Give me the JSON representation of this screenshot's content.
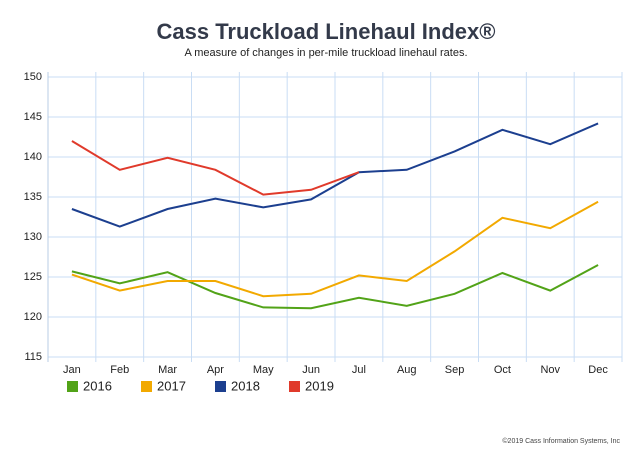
{
  "chart_data": {
    "type": "line",
    "title": "Cass Truckload Linehaul Index®",
    "subtitle": "A measure of changes in per-mile truckload linehaul rates.",
    "copyright": "©2019 Cass Information Systems, Inc",
    "categories": [
      "Jan",
      "Feb",
      "Mar",
      "Apr",
      "May",
      "Jun",
      "Jul",
      "Aug",
      "Sep",
      "Oct",
      "Nov",
      "Dec"
    ],
    "series": [
      {
        "name": "2016",
        "color": "#52a318",
        "values": [
          125.7,
          124.2,
          125.6,
          123.0,
          121.2,
          121.1,
          122.4,
          121.4,
          122.9,
          125.5,
          123.3,
          126.5
        ]
      },
      {
        "name": "2017",
        "color": "#f2a900",
        "values": [
          125.3,
          123.3,
          124.5,
          124.5,
          122.6,
          122.9,
          125.2,
          124.5,
          128.2,
          132.4,
          131.1,
          134.4
        ]
      },
      {
        "name": "2018",
        "color": "#1c3f8f",
        "values": [
          133.5,
          131.3,
          133.5,
          134.8,
          133.7,
          134.7,
          138.1,
          138.4,
          140.7,
          143.4,
          141.6,
          144.2
        ]
      },
      {
        "name": "2019",
        "color": "#e03a2b",
        "values": [
          142.0,
          138.4,
          139.9,
          138.4,
          135.3,
          135.9,
          138.1,
          null,
          null,
          null,
          null,
          null
        ]
      }
    ],
    "ylim": [
      115,
      150
    ],
    "yticks": [
      115,
      120,
      125,
      130,
      135,
      140,
      145,
      150
    ],
    "grid": true,
    "legend": "bottom"
  }
}
